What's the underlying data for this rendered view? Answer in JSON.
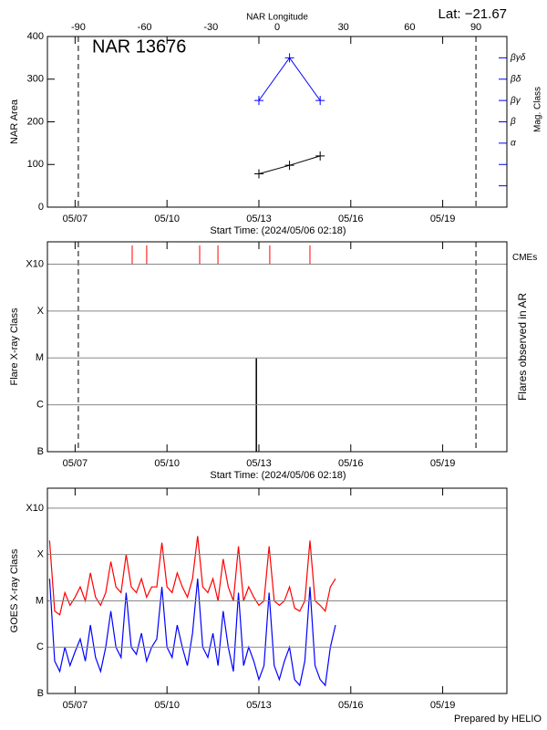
{
  "annotation": "Lat: −21.67",
  "footer": "Prepared by HELIO",
  "chart_data": [
    {
      "type": "line",
      "title": "NAR 13676",
      "x2label": "NAR Longitude",
      "xlabel": "Start Time: (2024/05/06 02:18)",
      "ylabel": "NAR Area",
      "y2label": "Mag. Class",
      "x2lim": [
        -104,
        104
      ],
      "x2ticks": [
        -90,
        -60,
        -30,
        0,
        30,
        60,
        90
      ],
      "xlim": [
        "2024-05-06T02:18",
        "2024-05-21T02:18"
      ],
      "xticks": [
        {
          "value": "2024-05-07T00:00",
          "label": "05/07"
        },
        {
          "value": "2024-05-10T00:00",
          "label": "05/10"
        },
        {
          "value": "2024-05-13T00:00",
          "label": "05/13"
        },
        {
          "value": "2024-05-16T00:00",
          "label": "05/16"
        },
        {
          "value": "2024-05-19T00:00",
          "label": "05/19"
        }
      ],
      "ylim": [
        0,
        400
      ],
      "yticks": [
        0,
        100,
        200,
        300,
        400
      ],
      "y2lim": [
        -1,
        7
      ],
      "y2ticks": [
        {
          "value": 0,
          "label": null
        },
        {
          "value": 1,
          "label": null
        },
        {
          "value": 2,
          "label": "α"
        },
        {
          "value": 3,
          "label": "β"
        },
        {
          "value": 4,
          "label": "βγ"
        },
        {
          "value": 5,
          "label": "βδ"
        },
        {
          "value": 6,
          "label": "βγδ"
        }
      ],
      "y2color": "#0000ff",
      "series": [
        {
          "color": "#000000",
          "x": [
            "2024-05-13T00:00",
            "2024-05-14T00:00",
            "2024-05-15T00:00"
          ],
          "values": [
            78,
            98,
            120
          ]
        },
        {
          "color": "#0000ff",
          "axis": "y2",
          "x": [
            "2024-05-13T00:00",
            "2024-05-14T00:00",
            "2024-05-15T00:00"
          ],
          "values": [
            4,
            6,
            4
          ]
        }
      ]
    },
    {
      "type": "events",
      "xlabel": "Start Time: (2024/05/06 02:18)",
      "ylabel": "Flare X-ray Class",
      "y2label": "Flares observed in AR",
      "log": true,
      "grid": true,
      "xlim": [
        "2024-05-06T02:18",
        "2024-05-21T02:18"
      ],
      "xticks": [
        {
          "value": "2024-05-07T00:00",
          "label": "05/07"
        },
        {
          "value": "2024-05-10T00:00",
          "label": "05/10"
        },
        {
          "value": "2024-05-13T00:00",
          "label": "05/13"
        },
        {
          "value": "2024-05-16T00:00",
          "label": "05/16"
        },
        {
          "value": "2024-05-19T00:00",
          "label": "05/19"
        }
      ],
      "ylim": [
        1e-07,
        0.003
      ],
      "yticks": [
        {
          "value": 1e-07,
          "label": "B"
        },
        {
          "value": 1e-06,
          "label": "C"
        },
        {
          "value": 1e-05,
          "label": "M"
        },
        {
          "value": 0.0001,
          "label": "X"
        },
        {
          "value": 0.001,
          "label": "X10"
        }
      ],
      "flares": {
        "color": "#000000",
        "x": [
          "2024-05-12T22:00"
        ],
        "values": [
          1e-05
        ]
      },
      "cmes": {
        "name": "CMEs",
        "color": "#ff0000",
        "x": [
          "2024-05-08T20:44",
          "2024-05-09T08:06",
          "2024-05-11T01:36",
          "2024-05-11T15:55",
          "2024-05-13T08:32",
          "2024-05-14T16:00"
        ]
      }
    },
    {
      "type": "line",
      "ylabel": "GOES X-ray Class",
      "log": true,
      "grid": true,
      "xlim": [
        "2024-05-06T02:18",
        "2024-05-21T02:18"
      ],
      "xticks": [
        {
          "value": "2024-05-07T00:00",
          "label": "05/07"
        },
        {
          "value": "2024-05-10T00:00",
          "label": "05/10"
        },
        {
          "value": "2024-05-13T00:00",
          "label": "05/13"
        },
        {
          "value": "2024-05-16T00:00",
          "label": "05/16"
        },
        {
          "value": "2024-05-19T00:00",
          "label": "05/19"
        }
      ],
      "ylim": [
        1e-07,
        0.0027
      ],
      "yticks": [
        {
          "value": 1e-07,
          "label": "B"
        },
        {
          "value": 1e-06,
          "label": "C"
        },
        {
          "value": 1e-05,
          "label": "M"
        },
        {
          "value": 0.0001,
          "label": "X"
        },
        {
          "value": 0.001,
          "label": "X10"
        }
      ],
      "x": [
        "2024-05-06T04:00",
        "2024-05-06T08:00",
        "2024-05-06T12:00",
        "2024-05-06T16:00",
        "2024-05-06T20:00",
        "2024-05-07T00:00",
        "2024-05-07T04:00",
        "2024-05-07T08:00",
        "2024-05-07T12:00",
        "2024-05-07T16:00",
        "2024-05-07T20:00",
        "2024-05-08T00:00",
        "2024-05-08T04:00",
        "2024-05-08T08:00",
        "2024-05-08T12:00",
        "2024-05-08T16:00",
        "2024-05-08T20:00",
        "2024-05-09T00:00",
        "2024-05-09T04:00",
        "2024-05-09T08:00",
        "2024-05-09T12:00",
        "2024-05-09T16:00",
        "2024-05-09T20:00",
        "2024-05-10T00:00",
        "2024-05-10T04:00",
        "2024-05-10T08:00",
        "2024-05-10T12:00",
        "2024-05-10T16:00",
        "2024-05-10T20:00",
        "2024-05-11T00:00",
        "2024-05-11T04:00",
        "2024-05-11T08:00",
        "2024-05-11T12:00",
        "2024-05-11T16:00",
        "2024-05-11T20:00",
        "2024-05-12T00:00",
        "2024-05-12T04:00",
        "2024-05-12T08:00",
        "2024-05-12T12:00",
        "2024-05-12T16:00",
        "2024-05-12T20:00",
        "2024-05-13T00:00",
        "2024-05-13T04:00",
        "2024-05-13T08:00",
        "2024-05-13T12:00",
        "2024-05-13T16:00",
        "2024-05-13T20:00",
        "2024-05-14T00:00",
        "2024-05-14T04:00",
        "2024-05-14T08:00",
        "2024-05-14T12:00",
        "2024-05-14T16:00",
        "2024-05-14T20:00",
        "2024-05-15T00:00",
        "2024-05-15T04:00",
        "2024-05-15T08:00",
        "2024-05-15T12:00"
      ],
      "series": [
        {
          "color": "#ff0000",
          "values": [
            0.0002,
            6e-06,
            5e-06,
            1.5e-05,
            8e-06,
            1.2e-05,
            2e-05,
            1e-05,
            4e-05,
            1.2e-05,
            8e-06,
            1.5e-05,
            7e-05,
            2e-05,
            1.5e-05,
            0.0001,
            2e-05,
            1.5e-05,
            3e-05,
            1.2e-05,
            2e-05,
            2e-05,
            0.00018,
            2e-05,
            1.5e-05,
            4e-05,
            2e-05,
            1.2e-05,
            3e-05,
            0.00025,
            2e-05,
            1.5e-05,
            3e-05,
            1e-05,
            8e-05,
            2e-05,
            1e-05,
            0.00015,
            1e-05,
            2e-05,
            1.2e-05,
            8e-06,
            1e-05,
            0.00015,
            1e-05,
            8e-06,
            1e-05,
            2e-05,
            7e-06,
            6e-06,
            1e-05,
            0.0002,
            1e-05,
            8e-06,
            6e-06,
            2e-05,
            3e-05
          ]
        },
        {
          "color": "#0000ff",
          "values": [
            3e-05,
            5e-07,
            3e-07,
            1e-06,
            4e-07,
            8e-07,
            1.5e-06,
            5e-07,
            3e-06,
            6e-07,
            3e-07,
            1e-06,
            6e-06,
            1e-06,
            6e-07,
            1.5e-05,
            1e-06,
            7e-07,
            2e-06,
            5e-07,
            1e-06,
            1.5e-06,
            2e-05,
            1e-06,
            6e-07,
            3e-06,
            1e-06,
            4e-07,
            2e-06,
            3e-05,
            1e-06,
            6e-07,
            2e-06,
            4e-07,
            6e-06,
            1e-06,
            3e-07,
            1.5e-05,
            4e-07,
            1e-06,
            5e-07,
            2e-07,
            4e-07,
            1.5e-05,
            4e-07,
            2e-07,
            5e-07,
            1e-06,
            2e-07,
            1.5e-07,
            5e-07,
            2e-05,
            4e-07,
            2e-07,
            1.5e-07,
            1e-06,
            3e-06
          ]
        }
      ]
    }
  ]
}
